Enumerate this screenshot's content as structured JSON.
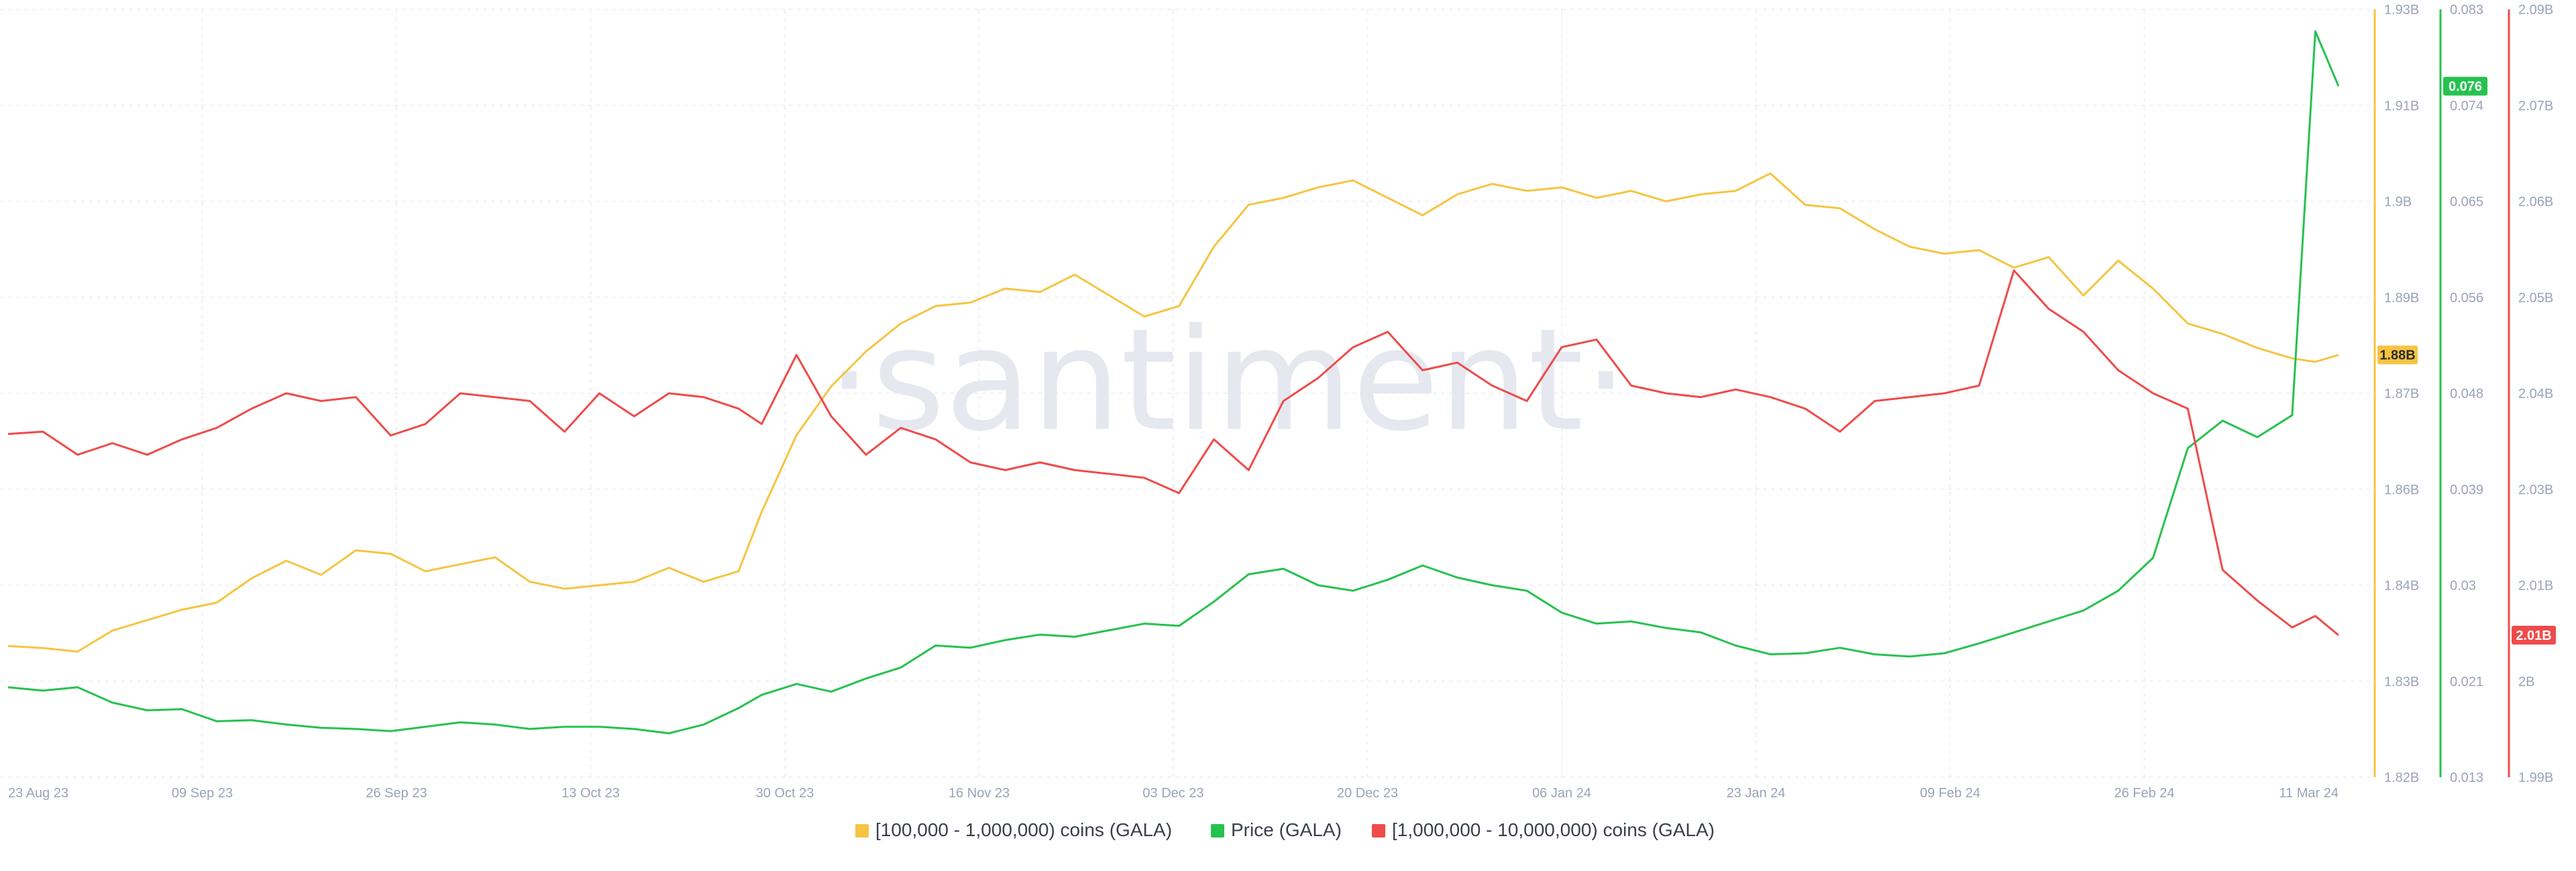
{
  "watermark": "·santiment·",
  "chart_data": {
    "type": "line",
    "grid": true,
    "legend_position": "bottom-center",
    "x_axis": {
      "tick_labels": [
        "23 Aug 23",
        "09 Sep 23",
        "26 Sep 23",
        "13 Oct 23",
        "30 Oct 23",
        "16 Nov 23",
        "03 Dec 23",
        "20 Dec 23",
        "06 Jan 24",
        "23 Jan 24",
        "09 Feb 24",
        "26 Feb 24",
        "11 Mar 24"
      ],
      "range": [
        "2023-08-23",
        "2024-03-11"
      ]
    },
    "y_axes": [
      {
        "id": "holders_100k_1m",
        "ylim": [
          1.82,
          1.93
        ],
        "unit": "B",
        "tick_labels": [
          "1.93B",
          "1.91B",
          "1.9B",
          "1.89B",
          "1.87B",
          "1.86B",
          "1.84B",
          "1.83B",
          "1.82B"
        ],
        "color": "#f5c542",
        "current_label": "1.88B"
      },
      {
        "id": "price",
        "ylim": [
          0.013,
          0.083
        ],
        "tick_labels": [
          "0.083",
          "0.074",
          "0.065",
          "0.056",
          "0.048",
          "0.039",
          "0.03",
          "0.021",
          "0.013"
        ],
        "color": "#26c24f",
        "current_label": "0.076"
      },
      {
        "id": "holders_1m_10m",
        "ylim": [
          1.99,
          2.09
        ],
        "unit": "B",
        "tick_labels": [
          "2.09B",
          "2.07B",
          "2.06B",
          "2.05B",
          "2.04B",
          "2.03B",
          "2.01B",
          "2B",
          "1.99B"
        ],
        "color": "#ef4b4b",
        "current_label": "2.01B"
      }
    ],
    "series": [
      {
        "name": "[100,000  - 1,000,000) coins (GALA)",
        "axis": "holders_100k_1m",
        "color": "#f5c542",
        "points": [
          [
            "2023-08-23",
            1.8388
          ],
          [
            "2023-08-26",
            1.8385
          ],
          [
            "2023-08-29",
            1.838
          ],
          [
            "2023-09-01",
            1.841
          ],
          [
            "2023-09-04",
            1.8425
          ],
          [
            "2023-09-07",
            1.844
          ],
          [
            "2023-09-10",
            1.845
          ],
          [
            "2023-09-13",
            1.8485
          ],
          [
            "2023-09-16",
            1.851
          ],
          [
            "2023-09-19",
            1.849
          ],
          [
            "2023-09-22",
            1.8525
          ],
          [
            "2023-09-25",
            1.852
          ],
          [
            "2023-09-28",
            1.8495
          ],
          [
            "2023-10-01",
            1.8505
          ],
          [
            "2023-10-04",
            1.8515
          ],
          [
            "2023-10-07",
            1.848
          ],
          [
            "2023-10-10",
            1.847
          ],
          [
            "2023-10-13",
            1.8475
          ],
          [
            "2023-10-16",
            1.848
          ],
          [
            "2023-10-19",
            1.85
          ],
          [
            "2023-10-22",
            1.848
          ],
          [
            "2023-10-25",
            1.8495
          ],
          [
            "2023-10-27",
            1.858
          ],
          [
            "2023-10-30",
            1.869
          ],
          [
            "2023-11-02",
            1.876
          ],
          [
            "2023-11-05",
            1.881
          ],
          [
            "2023-11-08",
            1.885
          ],
          [
            "2023-11-11",
            1.8875
          ],
          [
            "2023-11-14",
            1.888
          ],
          [
            "2023-11-17",
            1.89
          ],
          [
            "2023-11-20",
            1.8895
          ],
          [
            "2023-11-23",
            1.892
          ],
          [
            "2023-11-26",
            1.889
          ],
          [
            "2023-11-29",
            1.886
          ],
          [
            "2023-12-02",
            1.8875
          ],
          [
            "2023-12-05",
            1.896
          ],
          [
            "2023-12-08",
            1.902
          ],
          [
            "2023-12-11",
            1.903
          ],
          [
            "2023-12-14",
            1.9045
          ],
          [
            "2023-12-17",
            1.9055
          ],
          [
            "2023-12-20",
            1.903
          ],
          [
            "2023-12-23",
            1.9005
          ],
          [
            "2023-12-26",
            1.9035
          ],
          [
            "2023-12-29",
            1.905
          ],
          [
            "2024-01-01",
            1.904
          ],
          [
            "2024-01-04",
            1.9045
          ],
          [
            "2024-01-07",
            1.903
          ],
          [
            "2024-01-10",
            1.904
          ],
          [
            "2024-01-13",
            1.9025
          ],
          [
            "2024-01-16",
            1.9035
          ],
          [
            "2024-01-19",
            1.904
          ],
          [
            "2024-01-22",
            1.9065
          ],
          [
            "2024-01-25",
            1.902
          ],
          [
            "2024-01-28",
            1.9015
          ],
          [
            "2024-01-31",
            1.8985
          ],
          [
            "2024-02-03",
            1.896
          ],
          [
            "2024-02-06",
            1.895
          ],
          [
            "2024-02-09",
            1.8955
          ],
          [
            "2024-02-12",
            1.893
          ],
          [
            "2024-02-15",
            1.8945
          ],
          [
            "2024-02-18",
            1.889
          ],
          [
            "2024-02-21",
            1.894
          ],
          [
            "2024-02-24",
            1.89
          ],
          [
            "2024-02-27",
            1.885
          ],
          [
            "2024-03-01",
            1.8835
          ],
          [
            "2024-03-04",
            1.8815
          ],
          [
            "2024-03-07",
            1.88
          ],
          [
            "2024-03-09",
            1.8795
          ],
          [
            "2024-03-11",
            1.8805
          ]
        ]
      },
      {
        "name": "Price (GALA)",
        "axis": "price",
        "color": "#26c24f",
        "points": [
          [
            "2023-08-23",
            0.0212
          ],
          [
            "2023-08-26",
            0.0209
          ],
          [
            "2023-08-29",
            0.0212
          ],
          [
            "2023-09-01",
            0.0198
          ],
          [
            "2023-09-04",
            0.0191
          ],
          [
            "2023-09-07",
            0.0192
          ],
          [
            "2023-09-10",
            0.0181
          ],
          [
            "2023-09-13",
            0.0182
          ],
          [
            "2023-09-16",
            0.0178
          ],
          [
            "2023-09-19",
            0.0175
          ],
          [
            "2023-09-22",
            0.0174
          ],
          [
            "2023-09-25",
            0.0172
          ],
          [
            "2023-09-28",
            0.0176
          ],
          [
            "2023-10-01",
            0.018
          ],
          [
            "2023-10-04",
            0.0178
          ],
          [
            "2023-10-07",
            0.0174
          ],
          [
            "2023-10-10",
            0.0176
          ],
          [
            "2023-10-13",
            0.0176
          ],
          [
            "2023-10-16",
            0.0174
          ],
          [
            "2023-10-19",
            0.017
          ],
          [
            "2023-10-22",
            0.0178
          ],
          [
            "2023-10-25",
            0.0193
          ],
          [
            "2023-10-27",
            0.0205
          ],
          [
            "2023-10-30",
            0.0215
          ],
          [
            "2023-11-02",
            0.0208
          ],
          [
            "2023-11-05",
            0.022
          ],
          [
            "2023-11-08",
            0.023
          ],
          [
            "2023-11-11",
            0.025
          ],
          [
            "2023-11-14",
            0.0248
          ],
          [
            "2023-11-17",
            0.0255
          ],
          [
            "2023-11-20",
            0.026
          ],
          [
            "2023-11-23",
            0.0258
          ],
          [
            "2023-11-26",
            0.0264
          ],
          [
            "2023-11-29",
            0.027
          ],
          [
            "2023-12-02",
            0.0268
          ],
          [
            "2023-12-05",
            0.029
          ],
          [
            "2023-12-08",
            0.0315
          ],
          [
            "2023-12-11",
            0.032
          ],
          [
            "2023-12-14",
            0.0305
          ],
          [
            "2023-12-17",
            0.03
          ],
          [
            "2023-12-20",
            0.031
          ],
          [
            "2023-12-23",
            0.0323
          ],
          [
            "2023-12-26",
            0.0312
          ],
          [
            "2023-12-29",
            0.0305
          ],
          [
            "2024-01-01",
            0.03
          ],
          [
            "2024-01-04",
            0.028
          ],
          [
            "2024-01-07",
            0.027
          ],
          [
            "2024-01-10",
            0.0272
          ],
          [
            "2024-01-13",
            0.0266
          ],
          [
            "2024-01-16",
            0.0262
          ],
          [
            "2024-01-19",
            0.025
          ],
          [
            "2024-01-22",
            0.0242
          ],
          [
            "2024-01-25",
            0.0243
          ],
          [
            "2024-01-28",
            0.0248
          ],
          [
            "2024-01-31",
            0.0242
          ],
          [
            "2024-02-03",
            0.024
          ],
          [
            "2024-02-06",
            0.0243
          ],
          [
            "2024-02-09",
            0.0252
          ],
          [
            "2024-02-12",
            0.0262
          ],
          [
            "2024-02-15",
            0.0272
          ],
          [
            "2024-02-18",
            0.0282
          ],
          [
            "2024-02-21",
            0.03
          ],
          [
            "2024-02-24",
            0.033
          ],
          [
            "2024-02-27",
            0.043
          ],
          [
            "2024-03-01",
            0.0455
          ],
          [
            "2024-03-04",
            0.044
          ],
          [
            "2024-03-07",
            0.046
          ],
          [
            "2024-03-09",
            0.081
          ],
          [
            "2024-03-11",
            0.076
          ]
        ]
      },
      {
        "name": "[1,000,000 - 10,000,000) coins (GALA)",
        "axis": "holders_1m_10m",
        "color": "#ef4b4b",
        "points": [
          [
            "2023-08-23",
            2.0347
          ],
          [
            "2023-08-26",
            2.035
          ],
          [
            "2023-08-29",
            2.032
          ],
          [
            "2023-09-01",
            2.0335
          ],
          [
            "2023-09-04",
            2.032
          ],
          [
            "2023-09-07",
            2.034
          ],
          [
            "2023-09-10",
            2.0355
          ],
          [
            "2023-09-13",
            2.038
          ],
          [
            "2023-09-16",
            2.04
          ],
          [
            "2023-09-19",
            2.039
          ],
          [
            "2023-09-22",
            2.0395
          ],
          [
            "2023-09-25",
            2.0345
          ],
          [
            "2023-09-28",
            2.036
          ],
          [
            "2023-10-01",
            2.04
          ],
          [
            "2023-10-04",
            2.0395
          ],
          [
            "2023-10-07",
            2.039
          ],
          [
            "2023-10-10",
            2.035
          ],
          [
            "2023-10-13",
            2.04
          ],
          [
            "2023-10-16",
            2.037
          ],
          [
            "2023-10-19",
            2.04
          ],
          [
            "2023-10-22",
            2.0395
          ],
          [
            "2023-10-25",
            2.038
          ],
          [
            "2023-10-27",
            2.036
          ],
          [
            "2023-10-30",
            2.045
          ],
          [
            "2023-11-02",
            2.037
          ],
          [
            "2023-11-05",
            2.032
          ],
          [
            "2023-11-08",
            2.0355
          ],
          [
            "2023-11-11",
            2.034
          ],
          [
            "2023-11-14",
            2.031
          ],
          [
            "2023-11-17",
            2.03
          ],
          [
            "2023-11-20",
            2.031
          ],
          [
            "2023-11-23",
            2.03
          ],
          [
            "2023-11-26",
            2.0295
          ],
          [
            "2023-11-29",
            2.029
          ],
          [
            "2023-12-02",
            2.027
          ],
          [
            "2023-12-05",
            2.034
          ],
          [
            "2023-12-08",
            2.03
          ],
          [
            "2023-12-11",
            2.039
          ],
          [
            "2023-12-14",
            2.042
          ],
          [
            "2023-12-17",
            2.046
          ],
          [
            "2023-12-20",
            2.048
          ],
          [
            "2023-12-23",
            2.043
          ],
          [
            "2023-12-26",
            2.044
          ],
          [
            "2023-12-29",
            2.041
          ],
          [
            "2024-01-01",
            2.039
          ],
          [
            "2024-01-04",
            2.046
          ],
          [
            "2024-01-07",
            2.047
          ],
          [
            "2024-01-10",
            2.041
          ],
          [
            "2024-01-13",
            2.04
          ],
          [
            "2024-01-16",
            2.0395
          ],
          [
            "2024-01-19",
            2.0405
          ],
          [
            "2024-01-22",
            2.0395
          ],
          [
            "2024-01-25",
            2.038
          ],
          [
            "2024-01-28",
            2.035
          ],
          [
            "2024-01-31",
            2.039
          ],
          [
            "2024-02-03",
            2.0395
          ],
          [
            "2024-02-06",
            2.04
          ],
          [
            "2024-02-09",
            2.041
          ],
          [
            "2024-02-12",
            2.056
          ],
          [
            "2024-02-15",
            2.051
          ],
          [
            "2024-02-18",
            2.048
          ],
          [
            "2024-02-21",
            2.043
          ],
          [
            "2024-02-24",
            2.04
          ],
          [
            "2024-02-27",
            2.038
          ],
          [
            "2024-03-01",
            2.017
          ],
          [
            "2024-03-04",
            2.013
          ],
          [
            "2024-03-07",
            2.0095
          ],
          [
            "2024-03-09",
            2.011
          ],
          [
            "2024-03-11",
            2.0085
          ]
        ]
      }
    ]
  }
}
